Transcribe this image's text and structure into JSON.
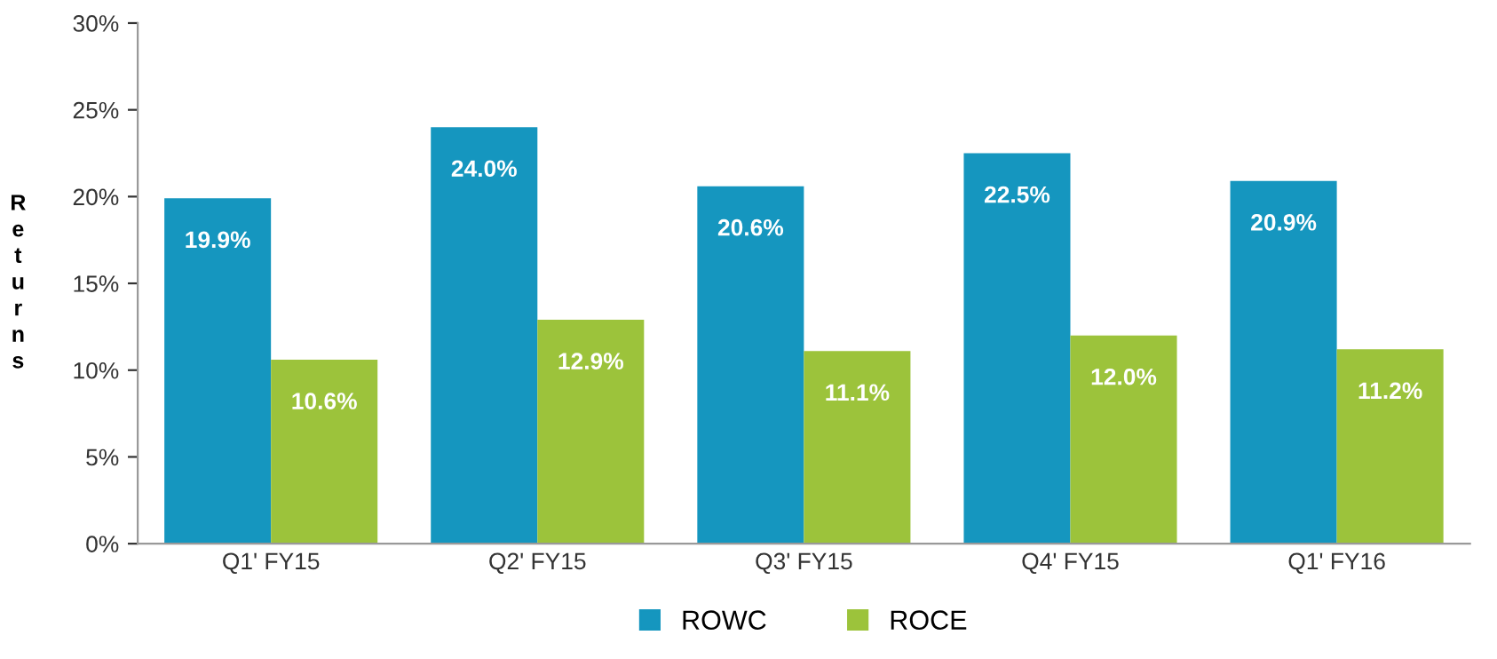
{
  "chart_data": {
    "type": "bar",
    "ylabel": "Returns",
    "categories": [
      "Q1' FY15",
      "Q2' FY15",
      "Q3' FY15",
      "Q4' FY15",
      "Q1' FY16"
    ],
    "series": [
      {
        "name": "ROWC",
        "color": "#1596bf",
        "values": [
          19.9,
          24.0,
          20.6,
          22.5,
          20.9
        ],
        "value_labels": [
          "19.9%",
          "24.0%",
          "20.6%",
          "22.5%",
          "20.9%"
        ]
      },
      {
        "name": "ROCE",
        "color": "#9cc33b",
        "values": [
          10.6,
          12.9,
          11.1,
          12.0,
          11.2
        ],
        "value_labels": [
          "10.6%",
          "12.9%",
          "11.1%",
          "12.0%",
          "11.2%"
        ]
      }
    ],
    "ylim": [
      0,
      30
    ],
    "yticks": [
      {
        "value": 0,
        "label": "0%"
      },
      {
        "value": 5,
        "label": "5%"
      },
      {
        "value": 10,
        "label": "10%"
      },
      {
        "value": 15,
        "label": "15%"
      },
      {
        "value": 20,
        "label": "20%"
      },
      {
        "value": 25,
        "label": "25%"
      },
      {
        "value": 30,
        "label": "30%"
      }
    ],
    "grid": false,
    "legend": "bottom"
  }
}
